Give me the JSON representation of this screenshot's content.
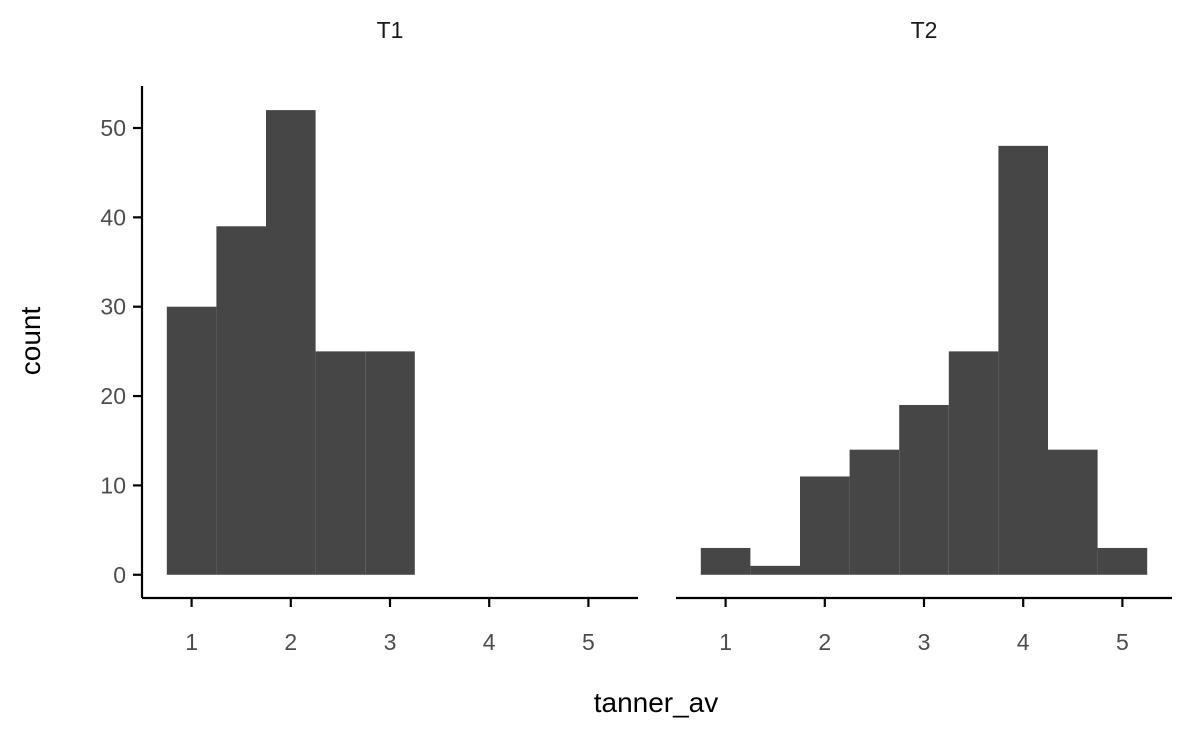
{
  "chart_data": {
    "type": "bar",
    "subtype": "histogram",
    "facet_by": "",
    "xlabel": "tanner_av",
    "ylabel": "count",
    "xlim": [
      0.5,
      5.5
    ],
    "ylim": [
      -2.6,
      54.7
    ],
    "x_ticks": [
      1,
      2,
      3,
      4,
      5
    ],
    "y_ticks": [
      0,
      10,
      20,
      30,
      40,
      50
    ],
    "bar_color": "#464646",
    "bin_width": 0.5,
    "grid": false,
    "legend": "none",
    "panels": [
      {
        "name": "T1",
        "bins": [
          {
            "x0": 0.75,
            "x1": 1.25,
            "count": 30
          },
          {
            "x0": 1.25,
            "x1": 1.75,
            "count": 39
          },
          {
            "x0": 1.75,
            "x1": 2.25,
            "count": 52
          },
          {
            "x0": 2.25,
            "x1": 2.75,
            "count": 25
          },
          {
            "x0": 2.75,
            "x1": 3.25,
            "count": 25
          }
        ]
      },
      {
        "name": "T2",
        "bins": [
          {
            "x0": 0.75,
            "x1": 1.25,
            "count": 3
          },
          {
            "x0": 1.25,
            "x1": 1.75,
            "count": 1
          },
          {
            "x0": 1.75,
            "x1": 2.25,
            "count": 11
          },
          {
            "x0": 2.25,
            "x1": 2.75,
            "count": 14
          },
          {
            "x0": 2.75,
            "x1": 3.25,
            "count": 19
          },
          {
            "x0": 3.25,
            "x1": 3.75,
            "count": 25
          },
          {
            "x0": 3.75,
            "x1": 4.25,
            "count": 48
          },
          {
            "x0": 4.25,
            "x1": 4.75,
            "count": 14
          },
          {
            "x0": 4.75,
            "x1": 5.25,
            "count": 3
          }
        ]
      }
    ]
  }
}
